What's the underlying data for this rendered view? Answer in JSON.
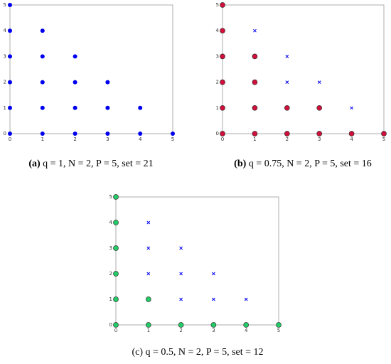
{
  "chart_data": [
    {
      "type": "scatter",
      "caption_label": "(a)",
      "caption": "q = 1, N = 2, P = 5, set = 21",
      "xlim": [
        0,
        5
      ],
      "ylim": [
        0,
        5
      ],
      "xticks": [
        0,
        1,
        2,
        3,
        4,
        5
      ],
      "yticks": [
        0,
        1,
        2,
        3,
        4,
        5
      ],
      "series": [
        {
          "color": "#0000ee",
          "marker": "circle",
          "x": [
            0,
            0,
            0,
            0,
            0,
            0,
            1,
            1,
            1,
            1,
            1,
            2,
            2,
            2,
            2,
            3,
            3,
            3,
            4,
            4,
            5
          ],
          "values": [
            0,
            1,
            2,
            3,
            4,
            5,
            0,
            1,
            2,
            3,
            4,
            0,
            1,
            2,
            3,
            0,
            1,
            2,
            0,
            1,
            0
          ]
        }
      ]
    },
    {
      "type": "scatter",
      "caption_label": "(b)",
      "caption": "q = 0.75, N = 2, P = 5, set = 16",
      "xlim": [
        0,
        5
      ],
      "ylim": [
        0,
        5
      ],
      "xticks": [
        0,
        1,
        2,
        3,
        4,
        5
      ],
      "yticks": [
        0,
        1,
        2,
        3,
        4,
        5
      ],
      "series": [
        {
          "color": "#d0103a",
          "marker": "circle",
          "x": [
            0,
            0,
            0,
            0,
            0,
            0,
            1,
            1,
            1,
            1,
            2,
            2,
            3,
            3,
            4,
            5
          ],
          "values": [
            0,
            1,
            2,
            3,
            4,
            5,
            0,
            1,
            2,
            3,
            0,
            1,
            0,
            1,
            0,
            0
          ]
        },
        {
          "color": "#0000ee",
          "marker": "x",
          "x": [
            1,
            2,
            2,
            3,
            4
          ],
          "values": [
            4,
            2,
            3,
            2,
            1
          ]
        }
      ]
    },
    {
      "type": "scatter",
      "caption_label": "(c)",
      "caption": "q = 0.5, N = 2, P = 5, set = 12",
      "xlim": [
        0,
        5
      ],
      "ylim": [
        0,
        5
      ],
      "xticks": [
        0,
        1,
        2,
        3,
        4,
        5
      ],
      "yticks": [
        0,
        1,
        2,
        3,
        4,
        5
      ],
      "series": [
        {
          "color": "#22cc66",
          "marker": "circle",
          "x": [
            0,
            0,
            0,
            0,
            0,
            0,
            1,
            1,
            2,
            3,
            4,
            5
          ],
          "values": [
            0,
            1,
            2,
            3,
            4,
            5,
            0,
            1,
            0,
            0,
            0,
            0
          ]
        },
        {
          "color": "#0000ee",
          "marker": "x",
          "x": [
            1,
            1,
            1,
            2,
            2,
            2,
            3,
            3,
            4
          ],
          "values": [
            2,
            3,
            4,
            1,
            2,
            3,
            1,
            2,
            1
          ]
        }
      ]
    }
  ]
}
